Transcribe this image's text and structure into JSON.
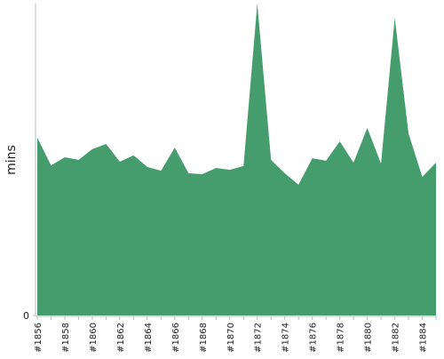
{
  "chart_data": {
    "type": "area",
    "y_label": "mins",
    "color": "#459c6d",
    "categories": [
      "#1856",
      null,
      "#1858",
      null,
      "#1860",
      null,
      "#1862",
      null,
      "#1864",
      null,
      "#1866",
      null,
      "#1868",
      null,
      "#1870",
      null,
      "#1872",
      null,
      "#1874",
      null,
      "#1876",
      null,
      "#1878",
      null,
      "#1880",
      null,
      "#1882",
      null,
      "#1884",
      null
    ],
    "values": [
      57.0,
      48.1,
      50.7,
      49.9,
      53.3,
      55.0,
      49.3,
      51.3,
      47.6,
      46.4,
      53.8,
      45.6,
      45.3,
      47.3,
      46.7,
      47.9,
      100,
      49.9,
      45.6,
      41.9,
      50.4,
      49.6,
      55.8,
      49.0,
      60.1,
      48.7,
      95.4,
      58.4,
      44.4,
      49.0
    ],
    "ylim": [
      0,
      100
    ],
    "yticks": [
      0
    ]
  }
}
